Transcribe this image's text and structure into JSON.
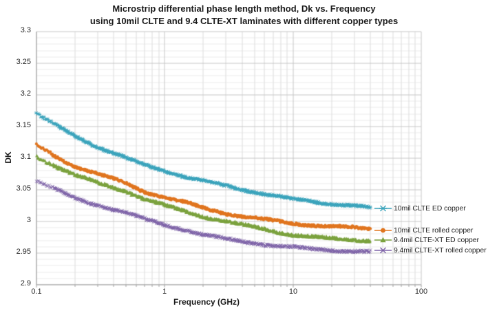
{
  "title": {
    "line1": "Microstrip differential phase length method, Dk vs. Frequency",
    "line2": "using 10mil CLTE and 9.4 CLTE-XT laminates with different copper types"
  },
  "chart_data": {
    "type": "scatter",
    "x_scale": "log",
    "xlabel": "Frequency (GHz)",
    "ylabel": "DK",
    "xlim": [
      0.1,
      100
    ],
    "ylim": [
      2.9,
      3.3
    ],
    "x_ticks": [
      "0.1",
      "1",
      "10",
      "100"
    ],
    "y_ticks": [
      "3.3",
      "3.25",
      "3.2",
      "3.15",
      "3.1",
      "3.05",
      "3",
      "2.95",
      "2.9"
    ],
    "y_major_step": 0.05,
    "y_minor_step": 0.01,
    "grid": "major and minor gridlines on",
    "legend_position": "right, inline with curve ends",
    "data_freq_range_ghz": [
      0.1,
      40
    ],
    "series": [
      {
        "name": "10mil CLTE ED copper",
        "color": "#3BA4BC",
        "marker": "asterisk",
        "points": [
          [
            0.1,
            3.17
          ],
          [
            0.15,
            3.149
          ],
          [
            0.2,
            3.135
          ],
          [
            0.3,
            3.118
          ],
          [
            0.5,
            3.1
          ],
          [
            0.7,
            3.089
          ],
          [
            1,
            3.08
          ],
          [
            1.5,
            3.07
          ],
          [
            2,
            3.064
          ],
          [
            3,
            3.056
          ],
          [
            5,
            3.047
          ],
          [
            7,
            3.041
          ],
          [
            10,
            3.035
          ],
          [
            15,
            3.031
          ],
          [
            20,
            3.028
          ],
          [
            30,
            3.025
          ],
          [
            40,
            3.021
          ]
        ]
      },
      {
        "name": "10mil CLTE rolled copper",
        "color": "#E0751F",
        "marker": "circle",
        "points": [
          [
            0.1,
            3.12
          ],
          [
            0.15,
            3.1
          ],
          [
            0.2,
            3.087
          ],
          [
            0.3,
            3.075
          ],
          [
            0.5,
            3.06
          ],
          [
            0.7,
            3.047
          ],
          [
            1,
            3.038
          ],
          [
            1.5,
            3.029
          ],
          [
            2,
            3.021
          ],
          [
            3,
            3.013
          ],
          [
            5,
            3.005
          ],
          [
            7,
            3.001
          ],
          [
            10,
            2.997
          ],
          [
            15,
            2.994
          ],
          [
            20,
            2.992
          ],
          [
            30,
            2.99
          ],
          [
            40,
            2.988
          ]
        ]
      },
      {
        "name": "9.4mil CLTE-XT ED copper",
        "color": "#7BA23E",
        "marker": "triangle",
        "points": [
          [
            0.1,
            3.103
          ],
          [
            0.15,
            3.085
          ],
          [
            0.2,
            3.073
          ],
          [
            0.3,
            3.061
          ],
          [
            0.5,
            3.048
          ],
          [
            0.7,
            3.035
          ],
          [
            1,
            3.025
          ],
          [
            1.5,
            3.015
          ],
          [
            2,
            3.008
          ],
          [
            3,
            3.0
          ],
          [
            5,
            2.991
          ],
          [
            7,
            2.985
          ],
          [
            10,
            2.979
          ],
          [
            15,
            2.975
          ],
          [
            20,
            2.973
          ],
          [
            30,
            2.971
          ],
          [
            40,
            2.97
          ]
        ]
      },
      {
        "name": "9.4mil CLTE-XT rolled copper",
        "color": "#7E63A8",
        "marker": "x",
        "points": [
          [
            0.1,
            3.065
          ],
          [
            0.15,
            3.048
          ],
          [
            0.2,
            3.036
          ],
          [
            0.3,
            3.026
          ],
          [
            0.5,
            3.014
          ],
          [
            0.7,
            3.003
          ],
          [
            1,
            2.995
          ],
          [
            1.5,
            2.986
          ],
          [
            2,
            2.979
          ],
          [
            3,
            2.972
          ],
          [
            5,
            2.966
          ],
          [
            7,
            2.962
          ],
          [
            10,
            2.959
          ],
          [
            15,
            2.956
          ],
          [
            20,
            2.955
          ],
          [
            30,
            2.953
          ],
          [
            40,
            2.952
          ]
        ]
      }
    ],
    "colors": {
      "background": "#ffffff",
      "major_grid": "#c6c6c6",
      "minor_grid": "#ececec",
      "axis_line": "#9e9e9e",
      "text": "#262626"
    }
  }
}
